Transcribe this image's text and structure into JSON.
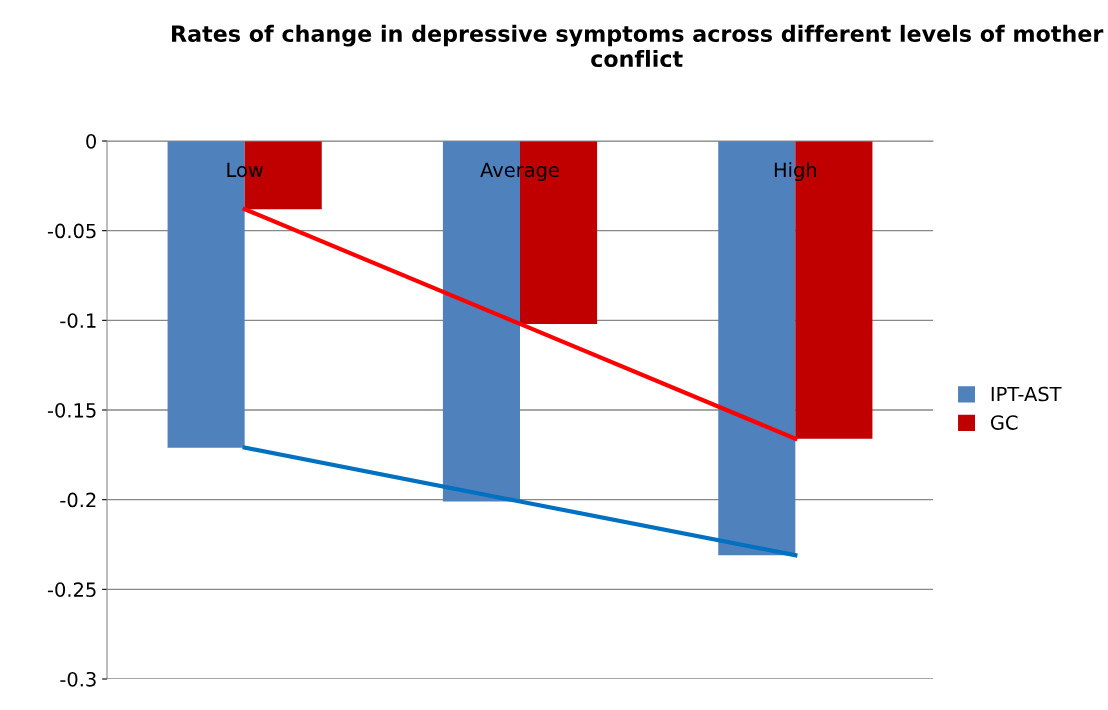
{
  "chart_data": {
    "type": "bar",
    "title": "Rates of change in depressive symptoms across different levels of mother conflict",
    "categories": [
      "Low",
      "Average",
      "High"
    ],
    "series": [
      {
        "name": "IPT-AST",
        "color": "#4f81bd",
        "values": [
          -0.171,
          -0.201,
          -0.231
        ]
      },
      {
        "name": "GC",
        "color": "#c00000",
        "values": [
          -0.038,
          -0.102,
          -0.166
        ]
      },
      {
        "type": "line",
        "color": "#ff0000",
        "values": [
          -0.038,
          -0.102,
          -0.166
        ]
      },
      {
        "type": "line",
        "color": "#0070c0",
        "values": [
          -0.171,
          -0.201,
          -0.231
        ]
      }
    ],
    "ylim": [
      -0.3,
      0
    ],
    "yticks": [
      0,
      -0.05,
      -0.1,
      -0.15,
      -0.2,
      -0.25,
      -0.3
    ],
    "grid": "y",
    "legend": "right",
    "line_style": "solid",
    "marker": "none"
  }
}
